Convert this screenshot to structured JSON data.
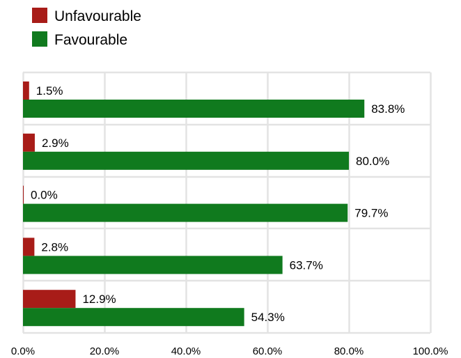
{
  "chart_data": {
    "type": "bar",
    "orientation": "horizontal",
    "categories": [
      "",
      "",
      "",
      "",
      ""
    ],
    "series": [
      {
        "name": "Unfavourable",
        "color": "#a81c18",
        "values": [
          1.5,
          2.9,
          0.0,
          2.8,
          12.9
        ],
        "labels": [
          "1.5%",
          "2.9%",
          "0.0%",
          "2.8%",
          "12.9%"
        ]
      },
      {
        "name": "Favourable",
        "color": "#107a1e",
        "values": [
          83.8,
          80.0,
          79.7,
          63.7,
          54.3
        ],
        "labels": [
          "83.8%",
          "80.0%",
          "79.7%",
          "63.7%",
          "54.3%"
        ]
      }
    ],
    "xlim": [
      0,
      100
    ],
    "xticks": [
      0,
      20,
      40,
      60,
      80,
      100
    ],
    "xtick_labels": [
      "0.0%",
      "20.0%",
      "40.0%",
      "60.0%",
      "80.0%",
      "100.0%"
    ],
    "grid": true,
    "legend": {
      "position": "top-left",
      "entries": [
        "Unfavourable",
        "Favourable"
      ]
    },
    "title": "",
    "xlabel": "",
    "ylabel": ""
  }
}
